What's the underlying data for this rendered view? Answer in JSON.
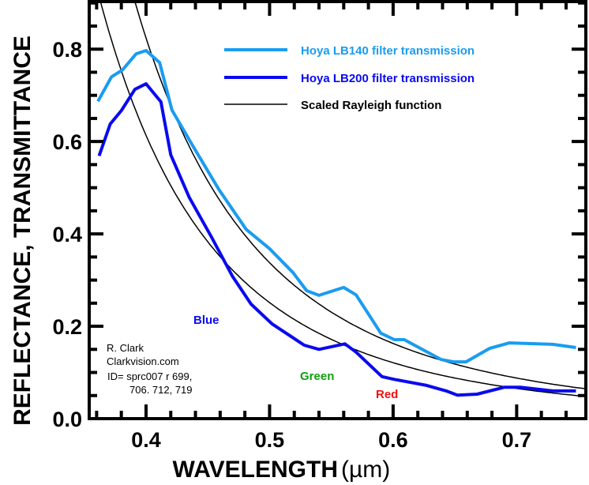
{
  "chart_data": {
    "type": "line",
    "title": "",
    "xlabel": "WAVELENGTH",
    "xlabel_unit": "(µm)",
    "ylabel": "REFLECTANCE, TRANSMITTANCE",
    "xlim": [
      0.354,
      0.756
    ],
    "ylim": [
      0.0,
      0.903
    ],
    "x_ticks": [
      0.4,
      0.5,
      0.6,
      0.7
    ],
    "x_tick_labels": [
      "0.4",
      "0.5",
      "0.6",
      "0.7"
    ],
    "x_minor_step": 0.02,
    "y_ticks": [
      0.0,
      0.2,
      0.4,
      0.6,
      0.8
    ],
    "y_tick_labels": [
      "0.0",
      "0.2",
      "0.4",
      "0.6",
      "0.8"
    ],
    "y_minor_step": 0.05,
    "grid": false,
    "legend_position": "top-right",
    "series": [
      {
        "name": "Hoya LB140 filter transmission",
        "color": "#1a9cf0",
        "x": [
          0.361,
          0.372,
          0.381,
          0.392,
          0.4,
          0.411,
          0.421,
          0.438,
          0.459,
          0.481,
          0.5,
          0.519,
          0.53,
          0.54,
          0.56,
          0.57,
          0.59,
          0.601,
          0.609,
          0.639,
          0.649,
          0.659,
          0.678,
          0.694,
          0.729,
          0.748
        ],
        "y": [
          0.687,
          0.74,
          0.755,
          0.79,
          0.797,
          0.771,
          0.668,
          0.59,
          0.496,
          0.41,
          0.368,
          0.316,
          0.277,
          0.267,
          0.284,
          0.268,
          0.185,
          0.171,
          0.171,
          0.128,
          0.123,
          0.123,
          0.152,
          0.164,
          0.161,
          0.154
        ]
      },
      {
        "name": "Hoya LB200 filter transmission",
        "color": "#0a0af0",
        "x": [
          0.362,
          0.371,
          0.38,
          0.391,
          0.4,
          0.412,
          0.42,
          0.435,
          0.453,
          0.47,
          0.485,
          0.502,
          0.528,
          0.54,
          0.561,
          0.57,
          0.591,
          0.601,
          0.627,
          0.643,
          0.652,
          0.668,
          0.69,
          0.703,
          0.729,
          0.748
        ],
        "y": [
          0.569,
          0.638,
          0.667,
          0.713,
          0.725,
          0.686,
          0.571,
          0.479,
          0.393,
          0.308,
          0.248,
          0.205,
          0.159,
          0.15,
          0.162,
          0.144,
          0.091,
          0.085,
          0.072,
          0.06,
          0.051,
          0.053,
          0.068,
          0.068,
          0.06,
          0.06
        ]
      },
      {
        "name": "Scaled Rayleigh function",
        "color": "#000000",
        "function": "k * wavelength^-4",
        "curves": [
          {
            "k": 0.0211
          },
          {
            "k": 0.0157
          }
        ]
      }
    ],
    "annotations": [
      {
        "text": "Blue",
        "color": "#0a0af0",
        "x": 0.452,
        "y": 0.21
      },
      {
        "text": "Green",
        "color": "#10a010",
        "x": 0.565,
        "y": 0.09
      },
      {
        "text": "Red",
        "color": "#f01010",
        "x": 0.605,
        "y": 0.045
      }
    ],
    "credits": [
      "R. Clark",
      "Clarkvision.com",
      "ID= sprc007 r 699,",
      "706. 712, 719"
    ]
  }
}
